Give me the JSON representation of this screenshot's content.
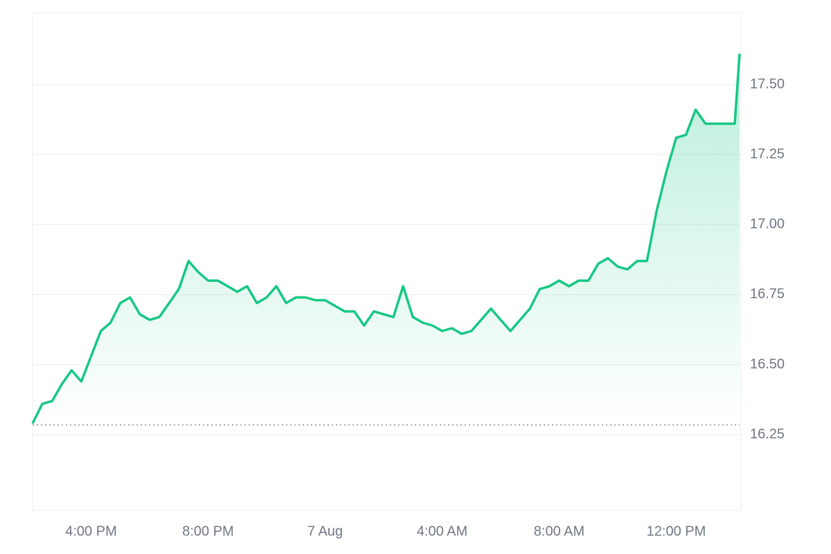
{
  "chart_data": {
    "type": "area",
    "x": [
      "6 Aug 14:00",
      "6 Aug 14:20",
      "6 Aug 14:40",
      "6 Aug 15:00",
      "6 Aug 15:20",
      "6 Aug 15:40",
      "6 Aug 16:00",
      "6 Aug 16:20",
      "6 Aug 16:40",
      "6 Aug 17:00",
      "6 Aug 17:20",
      "6 Aug 17:40",
      "6 Aug 18:00",
      "6 Aug 18:20",
      "6 Aug 18:40",
      "6 Aug 19:00",
      "6 Aug 19:20",
      "6 Aug 19:40",
      "6 Aug 20:00",
      "6 Aug 20:20",
      "6 Aug 20:40",
      "6 Aug 21:00",
      "6 Aug 21:20",
      "6 Aug 21:40",
      "6 Aug 22:00",
      "6 Aug 22:20",
      "6 Aug 22:40",
      "6 Aug 23:00",
      "6 Aug 23:20",
      "6 Aug 23:40",
      "7 Aug 00:00",
      "7 Aug 00:20",
      "7 Aug 00:40",
      "7 Aug 01:00",
      "7 Aug 01:20",
      "7 Aug 01:40",
      "7 Aug 02:00",
      "7 Aug 02:20",
      "7 Aug 02:40",
      "7 Aug 03:00",
      "7 Aug 03:20",
      "7 Aug 03:40",
      "7 Aug 04:00",
      "7 Aug 04:20",
      "7 Aug 04:40",
      "7 Aug 05:00",
      "7 Aug 05:20",
      "7 Aug 05:40",
      "7 Aug 06:00",
      "7 Aug 06:20",
      "7 Aug 06:40",
      "7 Aug 07:00",
      "7 Aug 07:20",
      "7 Aug 07:40",
      "7 Aug 08:00",
      "7 Aug 08:20",
      "7 Aug 08:40",
      "7 Aug 09:00",
      "7 Aug 09:20",
      "7 Aug 09:40",
      "7 Aug 10:00",
      "7 Aug 10:20",
      "7 Aug 10:40",
      "7 Aug 11:00",
      "7 Aug 11:20",
      "7 Aug 11:40",
      "7 Aug 12:00",
      "7 Aug 12:20",
      "7 Aug 12:40",
      "7 Aug 13:00",
      "7 Aug 13:20",
      "7 Aug 13:40",
      "7 Aug 14:00",
      "7 Aug 14:10"
    ],
    "values": [
      16.29,
      16.36,
      16.37,
      16.43,
      16.48,
      16.44,
      16.53,
      16.62,
      16.65,
      16.72,
      16.74,
      16.68,
      16.66,
      16.67,
      16.72,
      16.77,
      16.87,
      16.83,
      16.8,
      16.8,
      16.78,
      16.76,
      16.78,
      16.72,
      16.74,
      16.78,
      16.72,
      16.74,
      16.74,
      16.73,
      16.73,
      16.71,
      16.69,
      16.69,
      16.64,
      16.69,
      16.68,
      16.67,
      16.78,
      16.67,
      16.65,
      16.64,
      16.62,
      16.63,
      16.61,
      16.62,
      16.66,
      16.7,
      16.66,
      16.62,
      16.66,
      16.7,
      16.77,
      16.78,
      16.8,
      16.78,
      16.8,
      16.8,
      16.86,
      16.88,
      16.85,
      16.84,
      16.87,
      16.87,
      17.05,
      17.19,
      17.31,
      17.32,
      17.41,
      17.36,
      17.36,
      17.36,
      17.36,
      17.61
    ],
    "color": "#16c784",
    "reference_line": 16.285,
    "xlim": [
      "6 Aug 14:00",
      "7 Aug 14:10"
    ],
    "xticks": [
      {
        "value": "6 Aug 16:00",
        "label": "4:00 PM"
      },
      {
        "value": "6 Aug 20:00",
        "label": "8:00 PM"
      },
      {
        "value": "7 Aug 00:00",
        "label": "7 Aug"
      },
      {
        "value": "7 Aug 04:00",
        "label": "4:00 AM"
      },
      {
        "value": "7 Aug 08:00",
        "label": "8:00 AM"
      },
      {
        "value": "7 Aug 12:00",
        "label": "12:00 PM"
      }
    ],
    "ylim": [
      15.98,
      17.757
    ],
    "yticks": [
      {
        "value": 16.25,
        "label": "16.25"
      },
      {
        "value": 16.5,
        "label": "16.50"
      },
      {
        "value": 16.75,
        "label": "16.75"
      },
      {
        "value": 17,
        "label": "17.00"
      },
      {
        "value": 17.25,
        "label": "17.25"
      },
      {
        "value": 17.5,
        "label": "17.50"
      }
    ],
    "grid": true
  }
}
